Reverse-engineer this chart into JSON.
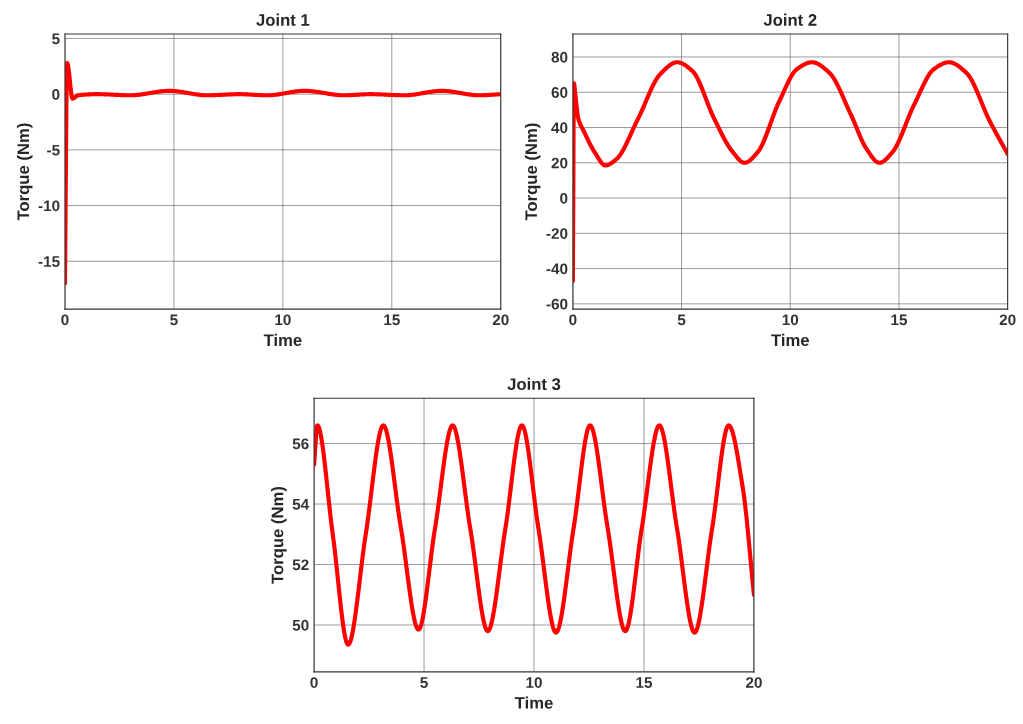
{
  "chart_data": [
    {
      "type": "line",
      "title": "Joint 1",
      "xlabel": "Time",
      "ylabel": "Torque (Nm)",
      "xlim": [
        0,
        20
      ],
      "xticks": [
        0,
        5,
        10,
        15,
        20
      ],
      "ylim": [
        -19.3,
        5.4
      ],
      "yticks": [
        -15,
        -10,
        -5,
        0,
        5
      ],
      "grid": true,
      "series": [
        {
          "color": "#ff0000",
          "x": [
            0,
            0.1,
            0.35,
            0.6,
            1.5,
            3,
            4.8,
            6.5,
            8,
            9.3,
            11,
            12.8,
            14,
            15.6,
            17.3,
            19,
            20
          ],
          "values": [
            -17,
            2.8,
            -0.4,
            -0.1,
            0,
            -0.1,
            0.3,
            -0.1,
            0,
            -0.1,
            0.3,
            -0.1,
            0,
            -0.1,
            0.3,
            -0.1,
            0
          ]
        }
      ]
    },
    {
      "type": "line",
      "title": "Joint 2",
      "xlabel": "Time",
      "ylabel": "Torque (Nm)",
      "xlim": [
        0,
        20
      ],
      "xticks": [
        0,
        5,
        10,
        15,
        20
      ],
      "ylim": [
        -63,
        93
      ],
      "yticks": [
        -60,
        -40,
        -20,
        0,
        20,
        40,
        60,
        80
      ],
      "grid": true,
      "series": [
        {
          "color": "#ff0000",
          "x": [
            0,
            0.05,
            0.1,
            0.25,
            0.5,
            1,
            1.5,
            2,
            3,
            4,
            4.8,
            5.5,
            6.5,
            7.3,
            7.9,
            8.5,
            9.5,
            10.3,
            11,
            11.8,
            12.8,
            13.5,
            14.1,
            14.7,
            15.7,
            16.6,
            17.3,
            18.1,
            19.2,
            20
          ],
          "values": [
            -47,
            65,
            60,
            45,
            38,
            26,
            18.5,
            22,
            45,
            70,
            77,
            72,
            45,
            27,
            20,
            26,
            55,
            73,
            77,
            71,
            47,
            28,
            20,
            26,
            53,
            73,
            77,
            71,
            43,
            25
          ]
        }
      ]
    },
    {
      "type": "line",
      "title": "Joint 3",
      "xlabel": "Time",
      "ylabel": "Torque (Nm)",
      "xlim": [
        0,
        20
      ],
      "xticks": [
        0,
        5,
        10,
        15,
        20
      ],
      "ylim": [
        48.45,
        57.5
      ],
      "yticks": [
        50,
        52,
        54,
        56
      ],
      "grid": true,
      "series": [
        {
          "color": "#ff0000",
          "x": [
            0,
            0.15,
            0.85,
            1.55,
            2.35,
            3.15,
            3.95,
            4.75,
            5.5,
            6.3,
            7.1,
            7.9,
            8.7,
            9.45,
            10.2,
            11.0,
            11.8,
            12.55,
            13.35,
            14.15,
            14.9,
            15.7,
            16.5,
            17.3,
            18.1,
            18.85,
            19.5,
            20
          ],
          "values": [
            55.3,
            56.6,
            53,
            49.35,
            53,
            56.6,
            53.2,
            49.85,
            53.2,
            56.6,
            53.2,
            49.8,
            53.2,
            56.6,
            53.2,
            49.75,
            53.2,
            56.6,
            53.2,
            49.8,
            53.2,
            56.6,
            53.2,
            49.75,
            53.2,
            56.6,
            54.5,
            51.0
          ]
        }
      ]
    }
  ]
}
